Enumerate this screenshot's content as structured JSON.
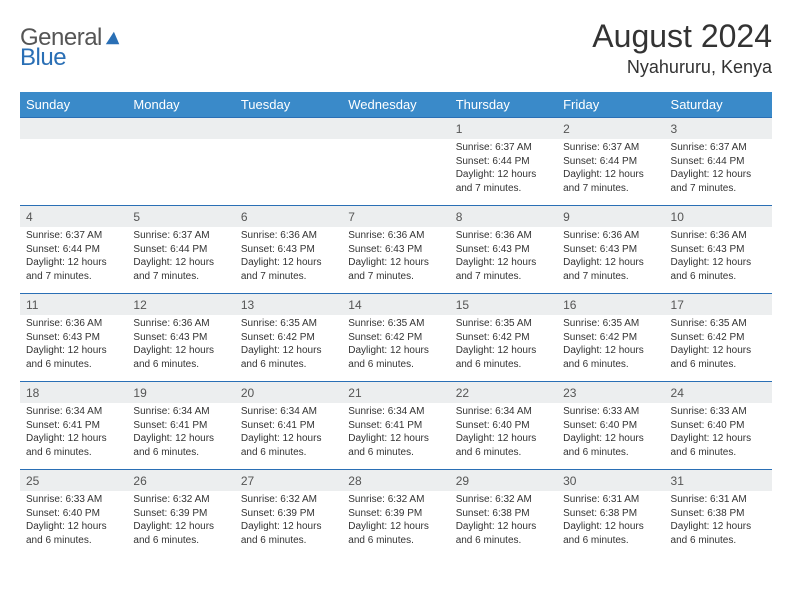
{
  "logo": {
    "general": "General",
    "blue": "Blue"
  },
  "title": "August 2024",
  "location": "Nyahururu, Kenya",
  "colors": {
    "header_bg": "#3a8ac9",
    "header_text": "#ffffff",
    "daynum_bg": "#eceeef",
    "rule": "#2a6fb5",
    "text": "#333333"
  },
  "weekdays": [
    "Sunday",
    "Monday",
    "Tuesday",
    "Wednesday",
    "Thursday",
    "Friday",
    "Saturday"
  ],
  "weeks": [
    [
      {
        "day": "",
        "lines": [
          "",
          "",
          "",
          ""
        ]
      },
      {
        "day": "",
        "lines": [
          "",
          "",
          "",
          ""
        ]
      },
      {
        "day": "",
        "lines": [
          "",
          "",
          "",
          ""
        ]
      },
      {
        "day": "",
        "lines": [
          "",
          "",
          "",
          ""
        ]
      },
      {
        "day": "1",
        "lines": [
          "Sunrise: 6:37 AM",
          "Sunset: 6:44 PM",
          "Daylight: 12 hours",
          "and 7 minutes."
        ]
      },
      {
        "day": "2",
        "lines": [
          "Sunrise: 6:37 AM",
          "Sunset: 6:44 PM",
          "Daylight: 12 hours",
          "and 7 minutes."
        ]
      },
      {
        "day": "3",
        "lines": [
          "Sunrise: 6:37 AM",
          "Sunset: 6:44 PM",
          "Daylight: 12 hours",
          "and 7 minutes."
        ]
      }
    ],
    [
      {
        "day": "4",
        "lines": [
          "Sunrise: 6:37 AM",
          "Sunset: 6:44 PM",
          "Daylight: 12 hours",
          "and 7 minutes."
        ]
      },
      {
        "day": "5",
        "lines": [
          "Sunrise: 6:37 AM",
          "Sunset: 6:44 PM",
          "Daylight: 12 hours",
          "and 7 minutes."
        ]
      },
      {
        "day": "6",
        "lines": [
          "Sunrise: 6:36 AM",
          "Sunset: 6:43 PM",
          "Daylight: 12 hours",
          "and 7 minutes."
        ]
      },
      {
        "day": "7",
        "lines": [
          "Sunrise: 6:36 AM",
          "Sunset: 6:43 PM",
          "Daylight: 12 hours",
          "and 7 minutes."
        ]
      },
      {
        "day": "8",
        "lines": [
          "Sunrise: 6:36 AM",
          "Sunset: 6:43 PM",
          "Daylight: 12 hours",
          "and 7 minutes."
        ]
      },
      {
        "day": "9",
        "lines": [
          "Sunrise: 6:36 AM",
          "Sunset: 6:43 PM",
          "Daylight: 12 hours",
          "and 7 minutes."
        ]
      },
      {
        "day": "10",
        "lines": [
          "Sunrise: 6:36 AM",
          "Sunset: 6:43 PM",
          "Daylight: 12 hours",
          "and 6 minutes."
        ]
      }
    ],
    [
      {
        "day": "11",
        "lines": [
          "Sunrise: 6:36 AM",
          "Sunset: 6:43 PM",
          "Daylight: 12 hours",
          "and 6 minutes."
        ]
      },
      {
        "day": "12",
        "lines": [
          "Sunrise: 6:36 AM",
          "Sunset: 6:43 PM",
          "Daylight: 12 hours",
          "and 6 minutes."
        ]
      },
      {
        "day": "13",
        "lines": [
          "Sunrise: 6:35 AM",
          "Sunset: 6:42 PM",
          "Daylight: 12 hours",
          "and 6 minutes."
        ]
      },
      {
        "day": "14",
        "lines": [
          "Sunrise: 6:35 AM",
          "Sunset: 6:42 PM",
          "Daylight: 12 hours",
          "and 6 minutes."
        ]
      },
      {
        "day": "15",
        "lines": [
          "Sunrise: 6:35 AM",
          "Sunset: 6:42 PM",
          "Daylight: 12 hours",
          "and 6 minutes."
        ]
      },
      {
        "day": "16",
        "lines": [
          "Sunrise: 6:35 AM",
          "Sunset: 6:42 PM",
          "Daylight: 12 hours",
          "and 6 minutes."
        ]
      },
      {
        "day": "17",
        "lines": [
          "Sunrise: 6:35 AM",
          "Sunset: 6:42 PM",
          "Daylight: 12 hours",
          "and 6 minutes."
        ]
      }
    ],
    [
      {
        "day": "18",
        "lines": [
          "Sunrise: 6:34 AM",
          "Sunset: 6:41 PM",
          "Daylight: 12 hours",
          "and 6 minutes."
        ]
      },
      {
        "day": "19",
        "lines": [
          "Sunrise: 6:34 AM",
          "Sunset: 6:41 PM",
          "Daylight: 12 hours",
          "and 6 minutes."
        ]
      },
      {
        "day": "20",
        "lines": [
          "Sunrise: 6:34 AM",
          "Sunset: 6:41 PM",
          "Daylight: 12 hours",
          "and 6 minutes."
        ]
      },
      {
        "day": "21",
        "lines": [
          "Sunrise: 6:34 AM",
          "Sunset: 6:41 PM",
          "Daylight: 12 hours",
          "and 6 minutes."
        ]
      },
      {
        "day": "22",
        "lines": [
          "Sunrise: 6:34 AM",
          "Sunset: 6:40 PM",
          "Daylight: 12 hours",
          "and 6 minutes."
        ]
      },
      {
        "day": "23",
        "lines": [
          "Sunrise: 6:33 AM",
          "Sunset: 6:40 PM",
          "Daylight: 12 hours",
          "and 6 minutes."
        ]
      },
      {
        "day": "24",
        "lines": [
          "Sunrise: 6:33 AM",
          "Sunset: 6:40 PM",
          "Daylight: 12 hours",
          "and 6 minutes."
        ]
      }
    ],
    [
      {
        "day": "25",
        "lines": [
          "Sunrise: 6:33 AM",
          "Sunset: 6:40 PM",
          "Daylight: 12 hours",
          "and 6 minutes."
        ]
      },
      {
        "day": "26",
        "lines": [
          "Sunrise: 6:32 AM",
          "Sunset: 6:39 PM",
          "Daylight: 12 hours",
          "and 6 minutes."
        ]
      },
      {
        "day": "27",
        "lines": [
          "Sunrise: 6:32 AM",
          "Sunset: 6:39 PM",
          "Daylight: 12 hours",
          "and 6 minutes."
        ]
      },
      {
        "day": "28",
        "lines": [
          "Sunrise: 6:32 AM",
          "Sunset: 6:39 PM",
          "Daylight: 12 hours",
          "and 6 minutes."
        ]
      },
      {
        "day": "29",
        "lines": [
          "Sunrise: 6:32 AM",
          "Sunset: 6:38 PM",
          "Daylight: 12 hours",
          "and 6 minutes."
        ]
      },
      {
        "day": "30",
        "lines": [
          "Sunrise: 6:31 AM",
          "Sunset: 6:38 PM",
          "Daylight: 12 hours",
          "and 6 minutes."
        ]
      },
      {
        "day": "31",
        "lines": [
          "Sunrise: 6:31 AM",
          "Sunset: 6:38 PM",
          "Daylight: 12 hours",
          "and 6 minutes."
        ]
      }
    ]
  ]
}
